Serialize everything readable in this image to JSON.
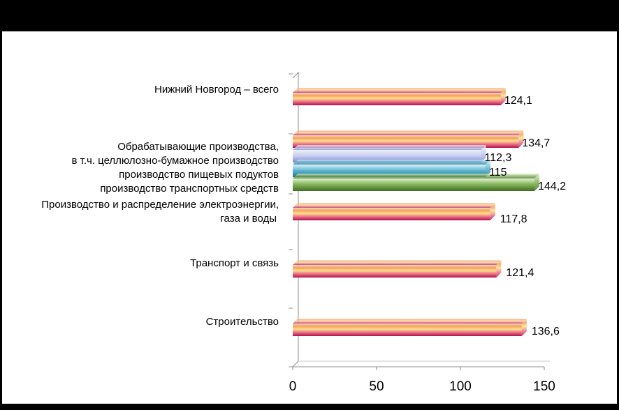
{
  "colors": {
    "background_frame": "#000000",
    "plot_area": "#ffffff",
    "axis": "#7f7f7f",
    "orange_pink_series": "#f0a050",
    "lavender_series": "#c9cff0",
    "teal_series": "#4aa7c4",
    "green_series": "#7fae55"
  },
  "chart_data": {
    "type": "bar",
    "orientation": "horizontal",
    "title": "",
    "xlabel": "",
    "ylabel": "",
    "xlim": [
      0,
      150
    ],
    "x_ticks": [
      "0",
      "50",
      "100",
      "150"
    ],
    "grid": false,
    "legend": "none",
    "groups": [
      {
        "label_lines": [
          "Нижний Новгород – всего"
        ],
        "bars": [
          {
            "value": 124.1,
            "label": "124,1",
            "style": "orange-pink"
          }
        ]
      },
      {
        "label_lines": [
          "Обрабатывающие производства,",
          "в т.ч. целлюлозно-бумажное производство",
          "производство пищевых подуктов",
          "производство транспортных средств"
        ],
        "bars": [
          {
            "value": 134.7,
            "label": "134,7",
            "style": "orange-pink"
          },
          {
            "value": 112.3,
            "label": "112,3",
            "style": "lavender"
          },
          {
            "value": 115,
            "label": "115",
            "style": "teal"
          },
          {
            "value": 144.2,
            "label": "144,2",
            "style": "green"
          }
        ]
      },
      {
        "label_lines": [
          "Производство и распределение электроэнергии,",
          "газа и воды"
        ],
        "bars": [
          {
            "value": 117.8,
            "label": "117,8",
            "style": "orange-pink"
          }
        ]
      },
      {
        "label_lines": [
          "Транспорт и связь"
        ],
        "bars": [
          {
            "value": 121.4,
            "label": "121,4",
            "style": "orange-pink"
          }
        ]
      },
      {
        "label_lines": [
          "Строительство"
        ],
        "bars": [
          {
            "value": 136.6,
            "label": "136,6",
            "style": "orange-pink"
          }
        ]
      }
    ]
  }
}
